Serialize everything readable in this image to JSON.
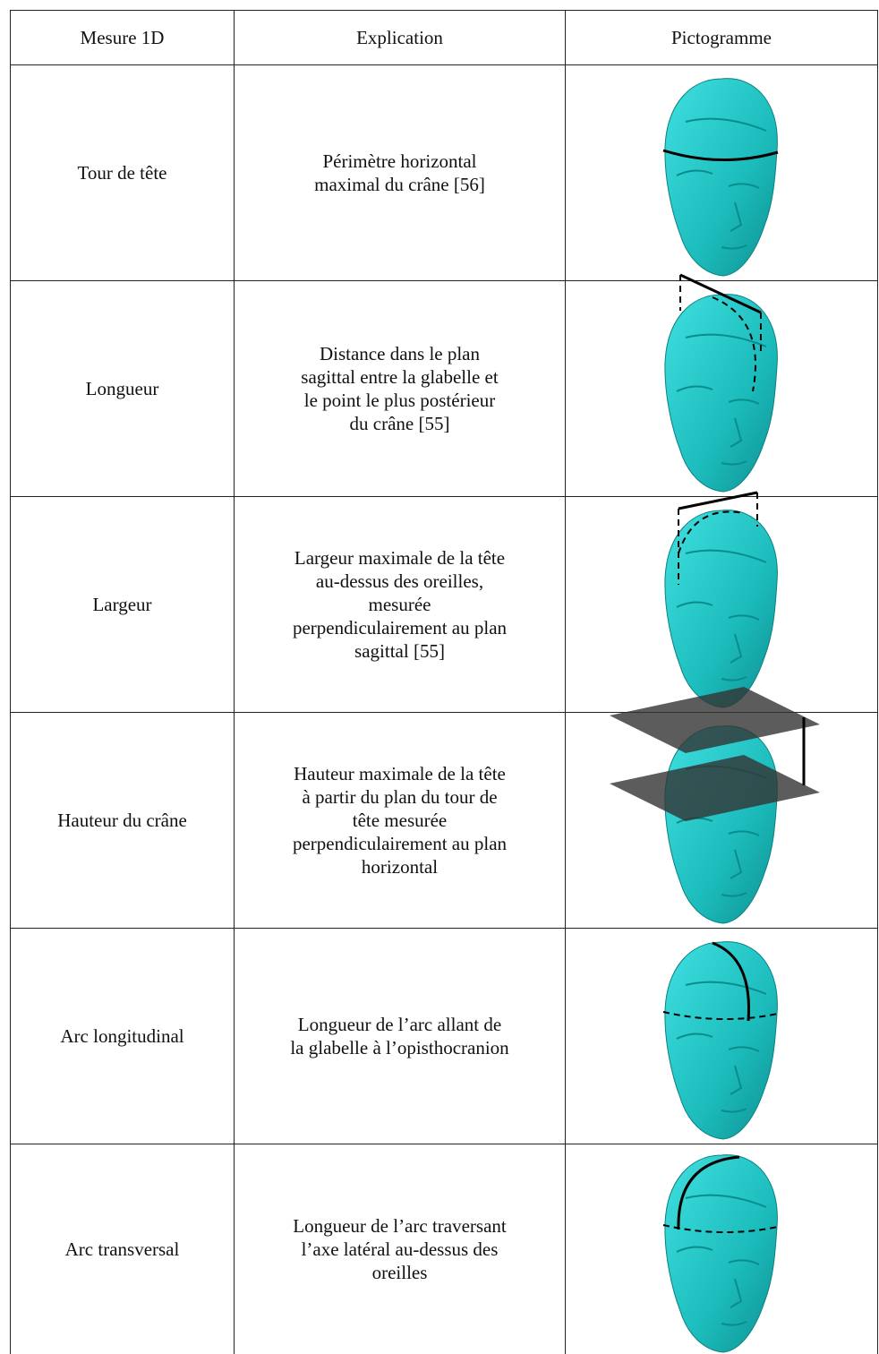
{
  "table": {
    "header": [
      "Mesure 1D",
      "Explication",
      "Pictogramme"
    ],
    "rows": [
      {
        "measure": "Tour de tête",
        "explanation_lines": [
          "Périmètre horizontal",
          "maximal du crâne [56]"
        ]
      },
      {
        "measure": "Longueur",
        "explanation_lines": [
          "Distance dans le plan",
          "sagittal entre la glabelle et",
          "le point le plus postérieur",
          "du crâne [55]"
        ]
      },
      {
        "measure": "Largeur",
        "explanation_lines": [
          "Largeur maximale de la tête",
          "au-dessus des oreilles,",
          "mesurée",
          "perpendiculairement au plan",
          "sagittal [55]"
        ]
      },
      {
        "measure": "Hauteur du crâne",
        "explanation_lines": [
          "Hauteur maximale de la tête",
          "à partir du plan du tour de",
          "tête mesurée",
          "perpendiculairement au plan",
          "horizontal"
        ]
      },
      {
        "measure": "Arc longitudinal",
        "explanation_lines": [
          "Longueur de l’arc allant de",
          "la glabelle à l’opisthocranion"
        ]
      },
      {
        "measure": "Arc transversal",
        "explanation_lines": [
          "Longueur de l’arc traversant",
          "l’axe latéral au-dessus des",
          "oreilles"
        ]
      }
    ]
  }
}
